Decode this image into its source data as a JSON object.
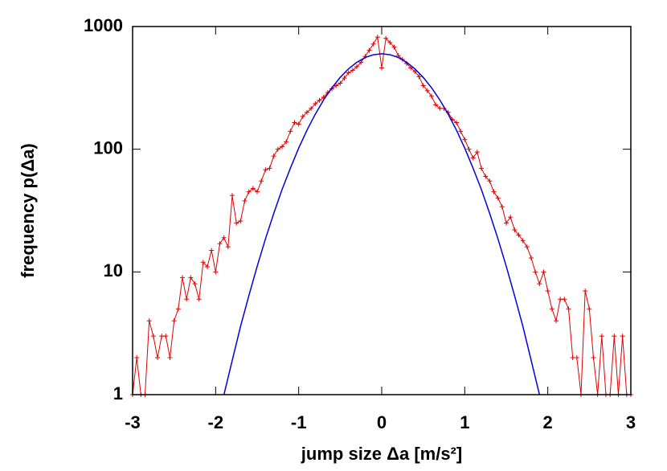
{
  "chart_data": {
    "type": "line",
    "x_label": "jump size Δa [m/s²]",
    "y_label": "frequency p(Δa)",
    "log_y": true,
    "xlim": [
      -3,
      3
    ],
    "xticks": [
      -3,
      -2,
      -1,
      0,
      1,
      2,
      3
    ],
    "ylim": [
      1,
      1000
    ],
    "yticks": [
      1,
      10,
      100,
      1000
    ],
    "series": [
      {
        "color": "#e00000",
        "markers": true,
        "x": [
          -3,
          -2.95,
          -2.9,
          -2.85,
          -2.8,
          -2.75,
          -2.7,
          -2.65,
          -2.6,
          -2.55,
          -2.5,
          -2.45,
          -2.4,
          -2.35,
          -2.3,
          -2.25,
          -2.2,
          -2.15,
          -2.1,
          -2.05,
          -2,
          -1.95,
          -1.9,
          -1.85,
          -1.8,
          -1.75,
          -1.7,
          -1.65,
          -1.6,
          -1.55,
          -1.5,
          -1.45,
          -1.4,
          -1.35,
          -1.3,
          -1.25,
          -1.2,
          -1.15,
          -1.1,
          -1.05,
          -1,
          -0.95,
          -0.9,
          -0.85,
          -0.8,
          -0.75,
          -0.7,
          -0.65,
          -0.6,
          -0.55,
          -0.5,
          -0.45,
          -0.4,
          -0.35,
          -0.3,
          -0.25,
          -0.2,
          -0.15,
          -0.1,
          -0.05,
          0,
          0.05,
          0.1,
          0.15,
          0.2,
          0.25,
          0.3,
          0.35,
          0.4,
          0.45,
          0.5,
          0.55,
          0.6,
          0.65,
          0.7,
          0.75,
          0.8,
          0.85,
          0.9,
          0.95,
          1,
          1.05,
          1.1,
          1.15,
          1.2,
          1.25,
          1.3,
          1.35,
          1.4,
          1.45,
          1.5,
          1.55,
          1.6,
          1.65,
          1.7,
          1.75,
          1.8,
          1.85,
          1.9,
          1.95,
          2,
          2.05,
          2.1,
          2.15,
          2.2,
          2.25,
          2.3,
          2.35,
          2.4,
          2.45,
          2.5,
          2.55,
          2.6,
          2.65,
          2.7,
          2.75,
          2.8,
          2.85,
          2.9,
          2.95,
          3
        ],
        "values": [
          1,
          2,
          1,
          1,
          4,
          3,
          2,
          3,
          3,
          2,
          4,
          5,
          9,
          6,
          9,
          8,
          6,
          12,
          11,
          15,
          10,
          17,
          19,
          16,
          42,
          25,
          26,
          38,
          45,
          48,
          45,
          55,
          68,
          70,
          88,
          100,
          105,
          115,
          140,
          165,
          160,
          185,
          200,
          215,
          235,
          250,
          265,
          290,
          310,
          330,
          345,
          380,
          420,
          440,
          470,
          510,
          570,
          640,
          720,
          820,
          460,
          800,
          740,
          680,
          580,
          540,
          500,
          460,
          430,
          390,
          330,
          300,
          270,
          230,
          215,
          215,
          200,
          175,
          165,
          140,
          120,
          100,
          85,
          95,
          70,
          60,
          55,
          45,
          40,
          34,
          25,
          28,
          22,
          20,
          18,
          16,
          13,
          10,
          8,
          10,
          7,
          5,
          4,
          6,
          6,
          5,
          2,
          2,
          1,
          7,
          5,
          2,
          1,
          3,
          1,
          1,
          3,
          1,
          3,
          1,
          1
        ]
      },
      {
        "color": "#0000dd",
        "markers": false,
        "x": [
          -1.9,
          -1.8,
          -1.7,
          -1.6,
          -1.5,
          -1.4,
          -1.3,
          -1.2,
          -1.1,
          -1,
          -0.9,
          -0.8,
          -0.7,
          -0.6,
          -0.5,
          -0.4,
          -0.3,
          -0.2,
          -0.1,
          0,
          0.1,
          0.2,
          0.3,
          0.4,
          0.5,
          0.6,
          0.7,
          0.8,
          0.9,
          1,
          1.1,
          1.2,
          1.3,
          1.4,
          1.5,
          1.6,
          1.7,
          1.8,
          1.9
        ],
        "values": [
          1,
          1.9,
          3.6,
          6.4,
          11.1,
          18.6,
          30,
          47,
          70,
          102,
          143,
          193,
          252,
          317,
          385,
          452,
          511,
          559,
          589,
          600,
          589,
          559,
          511,
          452,
          385,
          317,
          252,
          193,
          143,
          102,
          70,
          47,
          30,
          18.6,
          11.1,
          6.4,
          3.6,
          1.9,
          1
        ]
      }
    ]
  }
}
